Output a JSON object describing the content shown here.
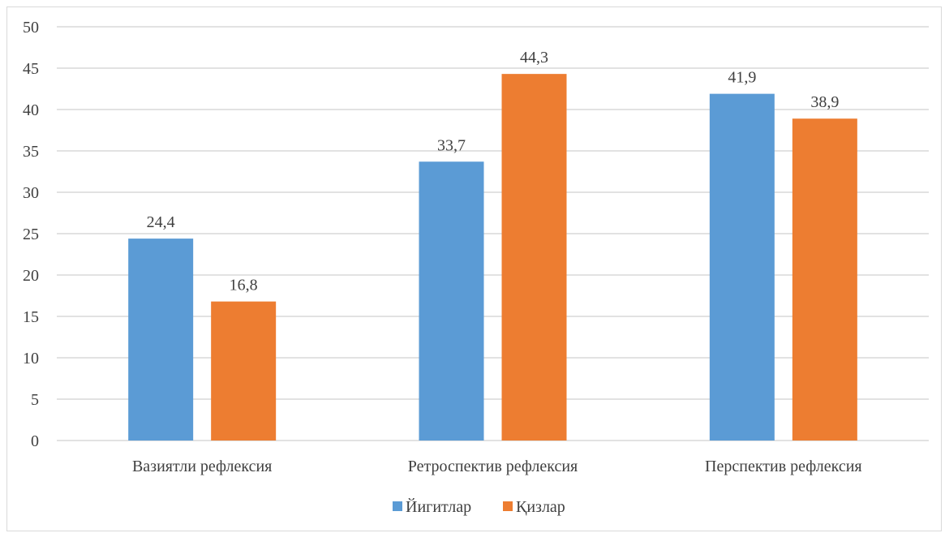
{
  "chart_data": {
    "type": "bar",
    "categories": [
      "Вазиятли рефлексия",
      "Ретроспектив рефлексия",
      "Перспектив рефлексия"
    ],
    "series": [
      {
        "name": "Йигитлар",
        "values": [
          24.4,
          33.7,
          41.9
        ],
        "labels": [
          "24,4",
          "33,7",
          "41,9"
        ],
        "color": "#5b9bd5"
      },
      {
        "name": "Қизлар",
        "values": [
          16.8,
          44.3,
          38.9
        ],
        "labels": [
          "16,8",
          "44,3",
          "38,9"
        ],
        "color": "#ed7d31"
      }
    ],
    "ylim": [
      0,
      50
    ],
    "yticks": [
      "0",
      "5",
      "10",
      "15",
      "20",
      "25",
      "30",
      "35",
      "40",
      "45",
      "50"
    ],
    "grid": true,
    "legend_position": "bottom",
    "gridline_color": "#d9d9d9"
  }
}
